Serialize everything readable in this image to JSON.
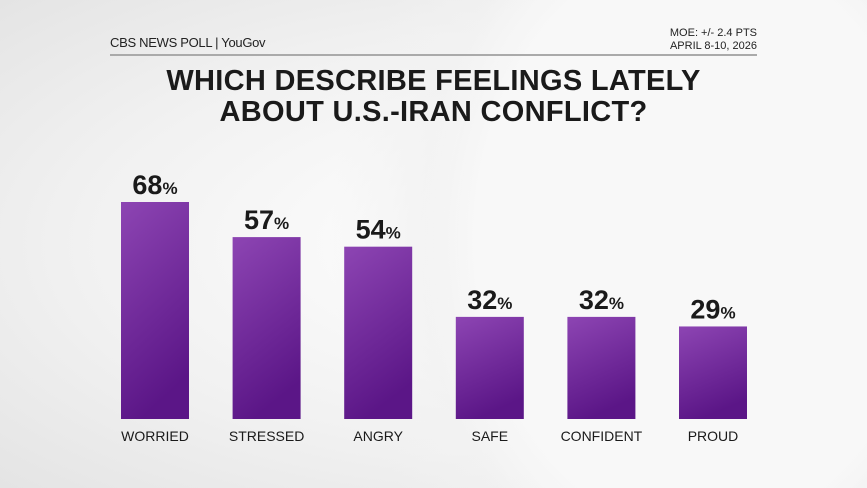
{
  "header": {
    "logo_text": "CBS NEWS POLL | YouGov",
    "moe": "MOE: +/- 2.4 PTS",
    "dates": "APRIL 8-10, 2026"
  },
  "chart_data": {
    "type": "bar",
    "title": "WHICH DESCRIBE FEELINGS LATELY ABOUT U.S.-IRAN CONFLICT?",
    "title_line1": "WHICH DESCRIBE FEELINGS LATELY",
    "title_line2": "ABOUT U.S.-IRAN CONFLICT?",
    "categories": [
      "WORRIED",
      "STRESSED",
      "ANGRY",
      "SAFE",
      "CONFIDENT",
      "PROUD"
    ],
    "values": [
      68,
      57,
      54,
      32,
      32,
      29
    ],
    "value_suffix": "%",
    "ylim": [
      0,
      100
    ],
    "grid": false,
    "bar_color_top": "#8d45b3",
    "bar_color_bottom": "#5b1687"
  }
}
